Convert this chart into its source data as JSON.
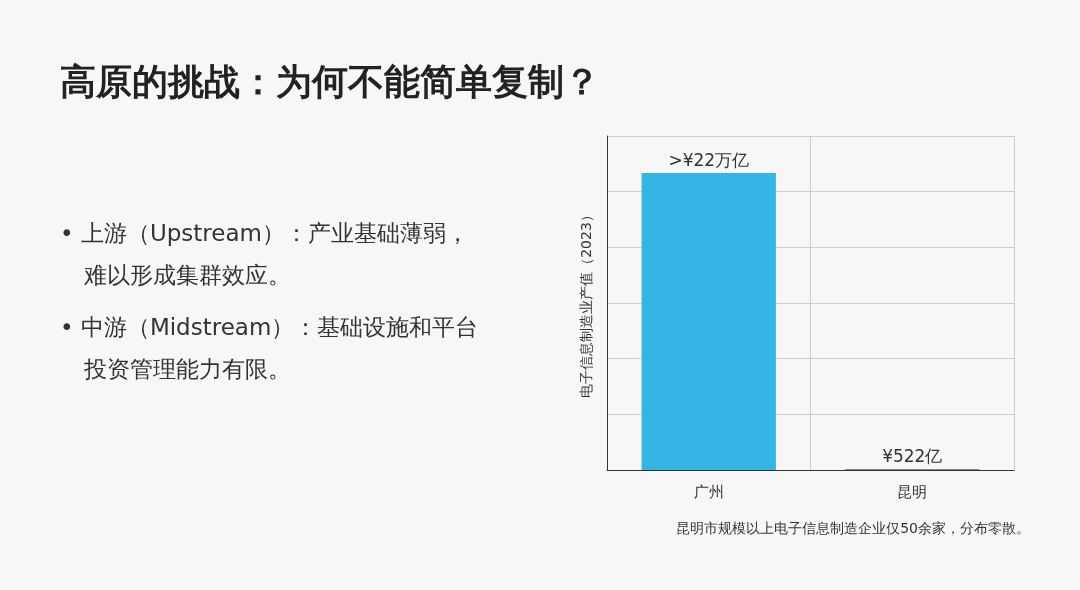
{
  "chart_data": {
    "type": "bar",
    "title": "高原的挑战：为何不能简单复制？",
    "ylabel": "电子信息制造业产值（2023）",
    "categories": [
      "广州",
      "昆明"
    ],
    "values": [
      220000,
      522
    ],
    "colors": [
      "#33b5e5",
      "#4a6a85"
    ],
    "value_labels": [
      ">¥22万亿",
      "¥522亿"
    ],
    "grid": true,
    "annotations": [
      "• 上游（Upstream）：产业基础薄弱，难以形成集群效应。",
      "• 中游（Midstream）：基础设施和平台投资管理能力有限。",
      "昆明市规模以上电子信息制造企业仅50余家，分布零散。"
    ]
  }
}
